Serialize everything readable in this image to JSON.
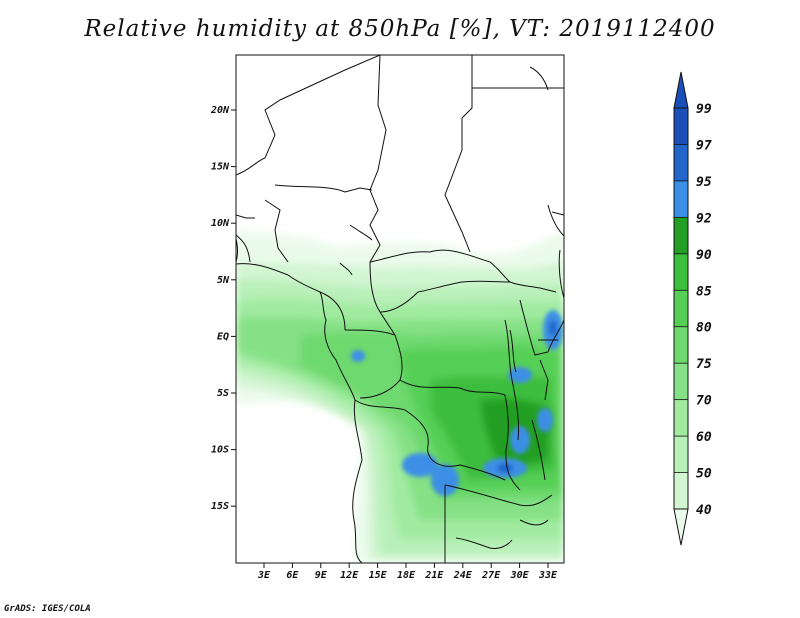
{
  "title": "Relative humidity at 850hPa [%], VT: 2019112400",
  "credit": "GrADS: IGES/COLA",
  "chart_data": {
    "type": "heatmap",
    "variable": "Relative humidity at 850hPa",
    "unit": "%",
    "valid_time": "2019112400",
    "lat_ticks": [
      "20N",
      "15N",
      "10N",
      "5N",
      "EQ",
      "5S",
      "10S",
      "15S"
    ],
    "lon_ticks": [
      "3E",
      "6E",
      "9E",
      "12E",
      "15E",
      "18E",
      "21E",
      "24E",
      "27E",
      "30E",
      "33E"
    ],
    "colorbar": {
      "levels": [
        "40",
        "50",
        "60",
        "70",
        "75",
        "80",
        "85",
        "90",
        "92",
        "95",
        "97",
        "99"
      ],
      "colors": [
        "#ebfbeb",
        "#d2f5d2",
        "#b9f0b9",
        "#a0eba0",
        "#86e186",
        "#6ed96e",
        "#56cf56",
        "#3cbd3c",
        "#239f23",
        "#3c8fe6",
        "#2266cc",
        "#1a4fb8"
      ],
      "extends_min": true,
      "extends_max": true
    }
  }
}
